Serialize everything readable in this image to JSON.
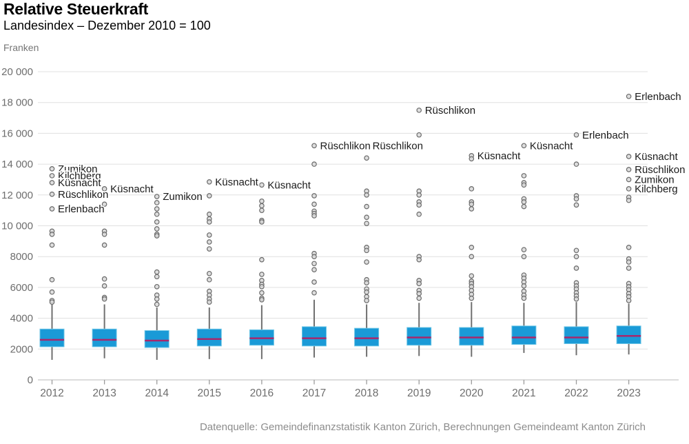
{
  "header": {
    "title": "Relative Steuerkraft",
    "subtitle": "Landesindex – Dezember 2010 = 100",
    "unit_label": "Franken"
  },
  "footer": {
    "source": "Datenquelle: Gemeindefinanzstatistik Kanton Zürich, Berechnungen Gemeindeamt Kanton Zürich"
  },
  "chart_data": {
    "type": "boxplot",
    "title": "Relative Steuerkraft",
    "subtitle": "Landesindex – Dezember 2010 = 100",
    "ylabel": "Franken",
    "ylim": [
      0,
      20000
    ],
    "grid": true,
    "y_ticks": [
      {
        "value": 20000,
        "label": "20 000"
      },
      {
        "value": 18000,
        "label": "18 000"
      },
      {
        "value": 16000,
        "label": "16 000"
      },
      {
        "value": 14000,
        "label": "14 000"
      },
      {
        "value": 12000,
        "label": "12 000"
      },
      {
        "value": 10000,
        "label": "10 000"
      },
      {
        "value": 8000,
        "label": "8000"
      },
      {
        "value": 6000,
        "label": "6000"
      },
      {
        "value": 4000,
        "label": "4000"
      },
      {
        "value": 2000,
        "label": "2000"
      },
      {
        "value": 0,
        "label": "0"
      }
    ],
    "categories": [
      "2012",
      "2013",
      "2014",
      "2015",
      "2016",
      "2017",
      "2018",
      "2019",
      "2020",
      "2021",
      "2022",
      "2023"
    ],
    "colors": {
      "box_fill": "#1A9AD7",
      "box_stroke": "#6EC6E6",
      "median": "#A8276B",
      "whisker": "#6F6F6F",
      "outlier_fill": "#D8D8D8",
      "outlier_stroke": "#6A6A6A",
      "grid": "#E0E0E0",
      "axis_line": "#C8C8C8",
      "tick": "#9A9A9A",
      "axis_text": "#6D6D6D",
      "label_text": "#1A1A1A"
    },
    "series": [
      {
        "year": "2012",
        "whisker_low": 1300,
        "q1": 2150,
        "median": 2600,
        "q3": 3300,
        "whisker_high": 4900,
        "outliers": [
          {
            "value": 13700,
            "label": "Zumikon"
          },
          {
            "value": 13250,
            "label": "Kilchberg"
          },
          {
            "value": 12800,
            "label": "Küsnacht"
          },
          {
            "value": 12050,
            "label": "Rüschlikon"
          },
          {
            "value": 11100,
            "label": "Erlenbach"
          },
          {
            "value": 9650
          },
          {
            "value": 9450
          },
          {
            "value": 8750
          },
          {
            "value": 6500
          },
          {
            "value": 5700
          },
          {
            "value": 5150
          },
          {
            "value": 5050
          }
        ]
      },
      {
        "year": "2013",
        "whisker_low": 1400,
        "q1": 2150,
        "median": 2600,
        "q3": 3300,
        "whisker_high": 4900,
        "outliers": [
          {
            "value": 12400,
            "label": "Küsnacht"
          },
          {
            "value": 11400
          },
          {
            "value": 9650
          },
          {
            "value": 9450
          },
          {
            "value": 8750
          },
          {
            "value": 6550
          },
          {
            "value": 6100
          },
          {
            "value": 5350
          },
          {
            "value": 5250
          }
        ]
      },
      {
        "year": "2014",
        "whisker_low": 1300,
        "q1": 2100,
        "median": 2550,
        "q3": 3200,
        "whisker_high": 4700,
        "outliers": [
          {
            "value": 11900,
            "label": "Zumikon"
          },
          {
            "value": 11500
          },
          {
            "value": 11100
          },
          {
            "value": 10750
          },
          {
            "value": 10250
          },
          {
            "value": 9800
          },
          {
            "value": 9450
          },
          {
            "value": 9350
          },
          {
            "value": 7000
          },
          {
            "value": 6700
          },
          {
            "value": 6050
          },
          {
            "value": 5500
          },
          {
            "value": 5250
          },
          {
            "value": 4900
          }
        ]
      },
      {
        "year": "2015",
        "whisker_low": 1350,
        "q1": 2200,
        "median": 2650,
        "q3": 3300,
        "whisker_high": 4700,
        "outliers": [
          {
            "value": 12850,
            "label": "Küsnacht"
          },
          {
            "value": 11950
          },
          {
            "value": 10750
          },
          {
            "value": 10450
          },
          {
            "value": 10250
          },
          {
            "value": 9400
          },
          {
            "value": 8950
          },
          {
            "value": 8500
          },
          {
            "value": 6900
          },
          {
            "value": 6500
          },
          {
            "value": 5750
          },
          {
            "value": 5500
          },
          {
            "value": 5250
          },
          {
            "value": 5050
          }
        ]
      },
      {
        "year": "2016",
        "whisker_low": 1350,
        "q1": 2250,
        "median": 2700,
        "q3": 3250,
        "whisker_high": 4850,
        "outliers": [
          {
            "value": 12650,
            "label": "Küsnacht"
          },
          {
            "value": 11600
          },
          {
            "value": 11300
          },
          {
            "value": 11000
          },
          {
            "value": 10350
          },
          {
            "value": 10250
          },
          {
            "value": 7800
          },
          {
            "value": 6850
          },
          {
            "value": 6450
          },
          {
            "value": 6200
          },
          {
            "value": 6050
          },
          {
            "value": 5650
          },
          {
            "value": 5300
          },
          {
            "value": 5200
          }
        ]
      },
      {
        "year": "2017",
        "whisker_low": 1450,
        "q1": 2200,
        "median": 2700,
        "q3": 3450,
        "whisker_high": 5200,
        "outliers": [
          {
            "value": 15200,
            "label": "Rüschlikon"
          },
          {
            "value": 14000
          },
          {
            "value": 11950
          },
          {
            "value": 11400
          },
          {
            "value": 10950
          },
          {
            "value": 10800
          },
          {
            "value": 10650
          },
          {
            "value": 8200
          },
          {
            "value": 8000
          },
          {
            "value": 7550
          },
          {
            "value": 7150
          },
          {
            "value": 6350
          },
          {
            "value": 5650
          }
        ]
      },
      {
        "year": "2018",
        "whisker_low": 1500,
        "q1": 2200,
        "median": 2700,
        "q3": 3350,
        "whisker_high": 4900,
        "outliers": [
          {
            "value": 15200,
            "label": "Rüschlikon"
          },
          {
            "value": 14400
          },
          {
            "value": 12250
          },
          {
            "value": 12000
          },
          {
            "value": 11250
          },
          {
            "value": 10550
          },
          {
            "value": 10150
          },
          {
            "value": 8600
          },
          {
            "value": 8400
          },
          {
            "value": 7650
          },
          {
            "value": 6500
          },
          {
            "value": 6300
          },
          {
            "value": 5900
          },
          {
            "value": 5700
          },
          {
            "value": 5400
          },
          {
            "value": 5150
          }
        ]
      },
      {
        "year": "2019",
        "whisker_low": 1550,
        "q1": 2250,
        "median": 2750,
        "q3": 3400,
        "whisker_high": 5000,
        "outliers": [
          {
            "value": 17500,
            "label": "Rüschlikon"
          },
          {
            "value": 15900
          },
          {
            "value": 12250
          },
          {
            "value": 12000
          },
          {
            "value": 11550
          },
          {
            "value": 11350
          },
          {
            "value": 10750
          },
          {
            "value": 8000
          },
          {
            "value": 7800
          },
          {
            "value": 6450
          },
          {
            "value": 6250
          },
          {
            "value": 5800
          },
          {
            "value": 5600
          },
          {
            "value": 5300
          }
        ]
      },
      {
        "year": "2020",
        "whisker_low": 1500,
        "q1": 2250,
        "median": 2750,
        "q3": 3400,
        "whisker_high": 5050,
        "outliers": [
          {
            "value": 14550,
            "label": "Küsnacht"
          },
          {
            "value": 14350
          },
          {
            "value": 12400
          },
          {
            "value": 11550
          },
          {
            "value": 11400
          },
          {
            "value": 11100
          },
          {
            "value": 8600
          },
          {
            "value": 8000
          },
          {
            "value": 6750
          },
          {
            "value": 6400
          },
          {
            "value": 6250
          },
          {
            "value": 6050
          },
          {
            "value": 5800
          },
          {
            "value": 5550
          },
          {
            "value": 5300
          }
        ]
      },
      {
        "year": "2021",
        "whisker_low": 1750,
        "q1": 2300,
        "median": 2750,
        "q3": 3500,
        "whisker_high": 5000,
        "outliers": [
          {
            "value": 15200,
            "label": "Küsnacht"
          },
          {
            "value": 13250
          },
          {
            "value": 12800
          },
          {
            "value": 12650
          },
          {
            "value": 11750
          },
          {
            "value": 11550
          },
          {
            "value": 11250
          },
          {
            "value": 8450
          },
          {
            "value": 8000
          },
          {
            "value": 6800
          },
          {
            "value": 6600
          },
          {
            "value": 6350
          },
          {
            "value": 6100
          },
          {
            "value": 5750
          },
          {
            "value": 5500
          },
          {
            "value": 5300
          }
        ]
      },
      {
        "year": "2022",
        "whisker_low": 1600,
        "q1": 2350,
        "median": 2750,
        "q3": 3450,
        "whisker_high": 5050,
        "outliers": [
          {
            "value": 15900,
            "label": "Erlenbach"
          },
          {
            "value": 14000
          },
          {
            "value": 11950
          },
          {
            "value": 11750
          },
          {
            "value": 11350
          },
          {
            "value": 8400
          },
          {
            "value": 8000
          },
          {
            "value": 7250
          },
          {
            "value": 6300
          },
          {
            "value": 6100
          },
          {
            "value": 5900
          },
          {
            "value": 5650
          },
          {
            "value": 5450
          },
          {
            "value": 5250
          }
        ]
      },
      {
        "year": "2023",
        "whisker_low": 1650,
        "q1": 2350,
        "median": 2850,
        "q3": 3500,
        "whisker_high": 4950,
        "outliers": [
          {
            "value": 18400,
            "label": "Erlenbach"
          },
          {
            "value": 14500,
            "label": "Küsnacht"
          },
          {
            "value": 13650,
            "label": "Rüschlikon"
          },
          {
            "value": 13000,
            "label": "Zumikon"
          },
          {
            "value": 12400,
            "label": "Kilchberg"
          },
          {
            "value": 11850
          },
          {
            "value": 11650
          },
          {
            "value": 8600
          },
          {
            "value": 7850
          },
          {
            "value": 7650
          },
          {
            "value": 7250
          },
          {
            "value": 6250
          },
          {
            "value": 6050
          },
          {
            "value": 5850
          },
          {
            "value": 5600
          },
          {
            "value": 5400
          },
          {
            "value": 5150
          }
        ]
      }
    ]
  }
}
